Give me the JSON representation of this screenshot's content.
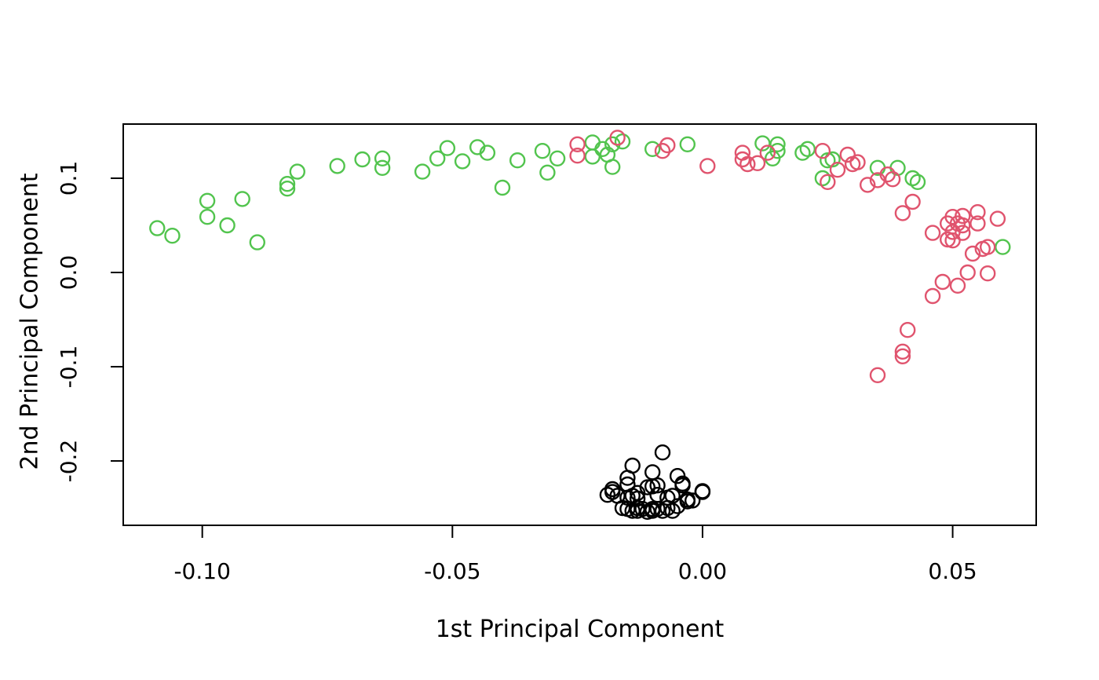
{
  "figure": {
    "background": "#ffffff",
    "x_axis_title": "1st Principal Component",
    "y_axis_title": "2nd Principal Component"
  },
  "chart_data": {
    "type": "scatter",
    "title": "",
    "xlabel": "1st Principal Component",
    "ylabel": "2nd Principal Component",
    "grid": false,
    "legend": "none",
    "marker": {
      "shape": "open-circle",
      "radius_px": 9,
      "stroke_px": 2.4
    },
    "axis_color": "#000000",
    "xlim": [
      -0.1158,
      0.0667
    ],
    "ylim": [
      -0.2683,
      0.1575
    ],
    "x_ticks": {
      "values": [
        -0.1,
        -0.05,
        0.0,
        0.05
      ],
      "labels": [
        "-0.10",
        "-0.05",
        "0.00",
        "0.05"
      ]
    },
    "y_ticks": {
      "values": [
        0.1,
        0.0,
        -0.1,
        -0.2
      ],
      "labels": [
        "0.1",
        "0.0",
        "-0.1",
        "-0.2"
      ]
    },
    "series": [
      {
        "name": "group-green",
        "color": "#52c44e",
        "points": [
          [
            -0.109,
            0.047
          ],
          [
            -0.106,
            0.039
          ],
          [
            -0.099,
            0.076
          ],
          [
            -0.099,
            0.059
          ],
          [
            -0.095,
            0.05
          ],
          [
            -0.092,
            0.078
          ],
          [
            -0.089,
            0.032
          ],
          [
            -0.083,
            0.089
          ],
          [
            -0.083,
            0.094
          ],
          [
            -0.081,
            0.107
          ],
          [
            -0.073,
            0.113
          ],
          [
            -0.068,
            0.12
          ],
          [
            -0.064,
            0.121
          ],
          [
            -0.064,
            0.111
          ],
          [
            -0.056,
            0.107
          ],
          [
            -0.053,
            0.121
          ],
          [
            -0.051,
            0.132
          ],
          [
            -0.048,
            0.118
          ],
          [
            -0.045,
            0.133
          ],
          [
            -0.043,
            0.127
          ],
          [
            -0.04,
            0.09
          ],
          [
            -0.037,
            0.119
          ],
          [
            -0.032,
            0.129
          ],
          [
            -0.031,
            0.106
          ],
          [
            -0.029,
            0.121
          ],
          [
            -0.022,
            0.138
          ],
          [
            -0.022,
            0.123
          ],
          [
            -0.02,
            0.131
          ],
          [
            -0.019,
            0.125
          ],
          [
            -0.018,
            0.136
          ],
          [
            -0.018,
            0.112
          ],
          [
            -0.016,
            0.139
          ],
          [
            -0.01,
            0.131
          ],
          [
            -0.003,
            0.136
          ],
          [
            0.012,
            0.137
          ],
          [
            0.014,
            0.121
          ],
          [
            0.015,
            0.136
          ],
          [
            0.015,
            0.129
          ],
          [
            0.02,
            0.127
          ],
          [
            0.021,
            0.131
          ],
          [
            0.024,
            0.1
          ],
          [
            0.025,
            0.119
          ],
          [
            0.026,
            0.12
          ],
          [
            0.035,
            0.111
          ],
          [
            0.039,
            0.111
          ],
          [
            0.042,
            0.1
          ],
          [
            0.043,
            0.096
          ],
          [
            0.06,
            0.027
          ]
        ]
      },
      {
        "name": "group-red",
        "color": "#e0546e",
        "points": [
          [
            -0.025,
            0.136
          ],
          [
            -0.025,
            0.124
          ],
          [
            -0.017,
            0.143
          ],
          [
            -0.008,
            0.129
          ],
          [
            -0.007,
            0.135
          ],
          [
            0.001,
            0.113
          ],
          [
            0.008,
            0.127
          ],
          [
            0.008,
            0.12
          ],
          [
            0.009,
            0.115
          ],
          [
            0.011,
            0.116
          ],
          [
            0.013,
            0.127
          ],
          [
            0.024,
            0.129
          ],
          [
            0.027,
            0.109
          ],
          [
            0.025,
            0.096
          ],
          [
            0.029,
            0.125
          ],
          [
            0.03,
            0.115
          ],
          [
            0.031,
            0.117
          ],
          [
            0.033,
            0.093
          ],
          [
            0.035,
            0.098
          ],
          [
            0.037,
            0.104
          ],
          [
            0.038,
            0.099
          ],
          [
            0.042,
            0.075
          ],
          [
            0.04,
            0.063
          ],
          [
            0.05,
            0.059
          ],
          [
            0.052,
            0.06
          ],
          [
            0.055,
            0.064
          ],
          [
            0.049,
            0.052
          ],
          [
            0.051,
            0.052
          ],
          [
            0.052,
            0.05
          ],
          [
            0.05,
            0.043
          ],
          [
            0.052,
            0.042
          ],
          [
            0.049,
            0.035
          ],
          [
            0.046,
            0.042
          ],
          [
            0.055,
            0.052
          ],
          [
            0.059,
            0.057
          ],
          [
            0.056,
            0.025
          ],
          [
            0.057,
            0.027
          ],
          [
            0.054,
            0.02
          ],
          [
            0.05,
            0.034
          ],
          [
            0.053,
            0.0
          ],
          [
            0.057,
            -0.001
          ],
          [
            0.048,
            -0.01
          ],
          [
            0.051,
            -0.014
          ],
          [
            0.046,
            -0.025
          ],
          [
            0.041,
            -0.061
          ],
          [
            0.04,
            -0.084
          ],
          [
            0.04,
            -0.089
          ],
          [
            0.035,
            -0.109
          ]
        ]
      },
      {
        "name": "group-black",
        "color": "#000000",
        "points": [
          [
            -0.008,
            -0.191
          ],
          [
            -0.014,
            -0.205
          ],
          [
            -0.01,
            -0.212
          ],
          [
            -0.015,
            -0.218
          ],
          [
            -0.005,
            -0.216
          ],
          [
            -0.004,
            -0.224
          ],
          [
            -0.018,
            -0.233
          ],
          [
            -0.017,
            -0.237
          ],
          [
            0.0,
            -0.232
          ],
          [
            -0.018,
            -0.23
          ],
          [
            -0.019,
            -0.236
          ],
          [
            -0.015,
            -0.225
          ],
          [
            -0.015,
            -0.239
          ],
          [
            -0.014,
            -0.237
          ],
          [
            -0.013,
            -0.234
          ],
          [
            -0.011,
            -0.228
          ],
          [
            -0.01,
            -0.227
          ],
          [
            -0.009,
            -0.226
          ],
          [
            -0.009,
            -0.236
          ],
          [
            -0.007,
            -0.239
          ],
          [
            -0.006,
            -0.237
          ],
          [
            -0.004,
            -0.226
          ],
          [
            -0.003,
            -0.243
          ],
          [
            -0.003,
            -0.241
          ],
          [
            0.0,
            -0.233
          ],
          [
            -0.016,
            -0.25
          ],
          [
            -0.015,
            -0.251
          ],
          [
            -0.014,
            -0.253
          ],
          [
            -0.013,
            -0.25
          ],
          [
            -0.013,
            -0.24
          ],
          [
            -0.013,
            -0.253
          ],
          [
            -0.012,
            -0.251
          ],
          [
            -0.011,
            -0.254
          ],
          [
            -0.01,
            -0.251
          ],
          [
            -0.01,
            -0.253
          ],
          [
            -0.009,
            -0.251
          ],
          [
            -0.008,
            -0.253
          ],
          [
            -0.007,
            -0.25
          ],
          [
            -0.006,
            -0.253
          ],
          [
            -0.005,
            -0.248
          ],
          [
            -0.002,
            -0.242
          ]
        ]
      }
    ]
  }
}
